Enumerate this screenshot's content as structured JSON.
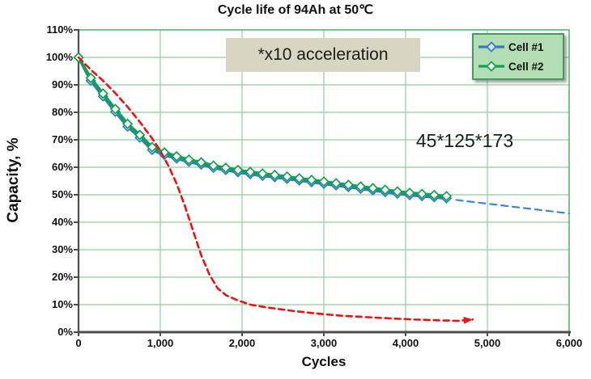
{
  "title": "Cycle life of 94Ah at  50℃",
  "annotations": {
    "acceleration": "*x10 acceleration",
    "cell_dimensions": "45*125*173"
  },
  "colors": {
    "grid": "#8fce9d",
    "frame": "#4caf6a",
    "axis": "#4d4d4d",
    "note_bg": "#d9d5c3",
    "legend_bg": "#b3deb3",
    "legend_border": "#3f9e57",
    "cell1": "#2f7cc3",
    "cell2": "#10a24f",
    "projection": "#3a86d8",
    "accelerated": "#ee1111"
  },
  "chart_data": {
    "type": "line",
    "title": "Cycle life of 94Ah at  50℃",
    "xlabel": "Cycles",
    "ylabel": "Capacity, %",
    "xlim": [
      0,
      6000
    ],
    "ylim": [
      0,
      110
    ],
    "grid": true,
    "legend_position": "top-right",
    "x_ticks": [
      0,
      1000,
      2000,
      3000,
      4000,
      5000,
      6000
    ],
    "x_tick_labels": [
      "0",
      "1,000",
      "2,000",
      "3,000",
      "4,000",
      "5,000",
      "6,000"
    ],
    "y_ticks": [
      0,
      10,
      20,
      30,
      40,
      50,
      60,
      70,
      80,
      90,
      100,
      110
    ],
    "y_tick_labels": [
      "0%",
      "10%",
      "20%",
      "30%",
      "40%",
      "50%",
      "60%",
      "70%",
      "80%",
      "90%",
      "100%",
      "110%"
    ],
    "legend": {
      "entries": [
        {
          "label": "Cell #1",
          "color": "#2f7cc3",
          "marker_fill": "#d6e6f5"
        },
        {
          "label": "Cell #2",
          "color": "#10a24f",
          "marker_fill": "#ffffff"
        }
      ]
    },
    "series": [
      {
        "name": "Cell #1",
        "color": "#2f7cc3",
        "style": "solid",
        "width": 3.6,
        "marker": "diamond",
        "marker_fill": "#d6e6f5",
        "points": [
          [
            0,
            100
          ],
          [
            150,
            91.5
          ],
          [
            300,
            85.8
          ],
          [
            450,
            80.2
          ],
          [
            600,
            74.8
          ],
          [
            750,
            70.8
          ],
          [
            900,
            66.3
          ],
          [
            1050,
            64.5
          ],
          [
            1200,
            63.2
          ],
          [
            1350,
            62.0
          ],
          [
            1500,
            61.0
          ],
          [
            1650,
            59.8
          ],
          [
            1800,
            59.0
          ],
          [
            1950,
            58.2
          ],
          [
            2100,
            57.5
          ],
          [
            2250,
            56.9
          ],
          [
            2400,
            56.4
          ],
          [
            2550,
            55.8
          ],
          [
            2700,
            55.2
          ],
          [
            2850,
            54.6
          ],
          [
            3000,
            54.0
          ],
          [
            3150,
            53.4
          ],
          [
            3300,
            52.8
          ],
          [
            3450,
            52.2
          ],
          [
            3600,
            51.6
          ],
          [
            3750,
            51.0
          ],
          [
            3900,
            50.4
          ],
          [
            4050,
            49.9
          ],
          [
            4200,
            49.5
          ],
          [
            4350,
            49.1
          ],
          [
            4500,
            48.7
          ]
        ]
      },
      {
        "name": "Cell #2",
        "color": "#10a24f",
        "style": "solid",
        "width": 3.6,
        "marker": "diamond",
        "marker_fill": "#ffffff",
        "points": [
          [
            0,
            100
          ],
          [
            150,
            92.5
          ],
          [
            300,
            86.8
          ],
          [
            450,
            81.2
          ],
          [
            600,
            75.8
          ],
          [
            750,
            71.8
          ],
          [
            900,
            67.3
          ],
          [
            1050,
            65.4
          ],
          [
            1200,
            64.0
          ],
          [
            1350,
            62.8
          ],
          [
            1500,
            61.8
          ],
          [
            1650,
            60.6
          ],
          [
            1800,
            59.8
          ],
          [
            1950,
            59.0
          ],
          [
            2100,
            58.3
          ],
          [
            2250,
            57.7
          ],
          [
            2400,
            57.2
          ],
          [
            2550,
            56.6
          ],
          [
            2700,
            56.0
          ],
          [
            2850,
            55.4
          ],
          [
            3000,
            54.8
          ],
          [
            3150,
            54.2
          ],
          [
            3300,
            53.6
          ],
          [
            3450,
            53.0
          ],
          [
            3600,
            52.4
          ],
          [
            3750,
            51.8
          ],
          [
            3900,
            51.2
          ],
          [
            4050,
            50.7
          ],
          [
            4200,
            50.3
          ],
          [
            4350,
            49.9
          ],
          [
            4500,
            49.5
          ]
        ]
      },
      {
        "name": "Cell #1 projection",
        "color": "#3a86d8",
        "style": "dashed",
        "dash": "8 6",
        "width": 2.2,
        "points": [
          [
            4620,
            48.1
          ],
          [
            6000,
            43.2
          ]
        ]
      },
      {
        "name": "x10 accelerated projection",
        "color": "#ee1111",
        "style": "dashed",
        "dash": "7 5",
        "width": 2.6,
        "arrow": true,
        "points": [
          [
            0,
            100
          ],
          [
            150,
            95.5
          ],
          [
            300,
            91.5
          ],
          [
            450,
            87
          ],
          [
            600,
            82
          ],
          [
            750,
            76.5
          ],
          [
            900,
            70.5
          ],
          [
            1000,
            66
          ],
          [
            1100,
            60.5
          ],
          [
            1200,
            54
          ],
          [
            1300,
            46
          ],
          [
            1400,
            37
          ],
          [
            1500,
            28
          ],
          [
            1600,
            21
          ],
          [
            1700,
            16
          ],
          [
            1800,
            13.5
          ],
          [
            1950,
            11.5
          ],
          [
            2100,
            10
          ],
          [
            2300,
            9
          ],
          [
            2600,
            7.8
          ],
          [
            2900,
            6.8
          ],
          [
            3200,
            6
          ],
          [
            3500,
            5.5
          ],
          [
            3800,
            5
          ],
          [
            4100,
            4.6
          ],
          [
            4400,
            4.3
          ],
          [
            4650,
            4.1
          ],
          [
            4820,
            4.6
          ]
        ]
      }
    ]
  }
}
